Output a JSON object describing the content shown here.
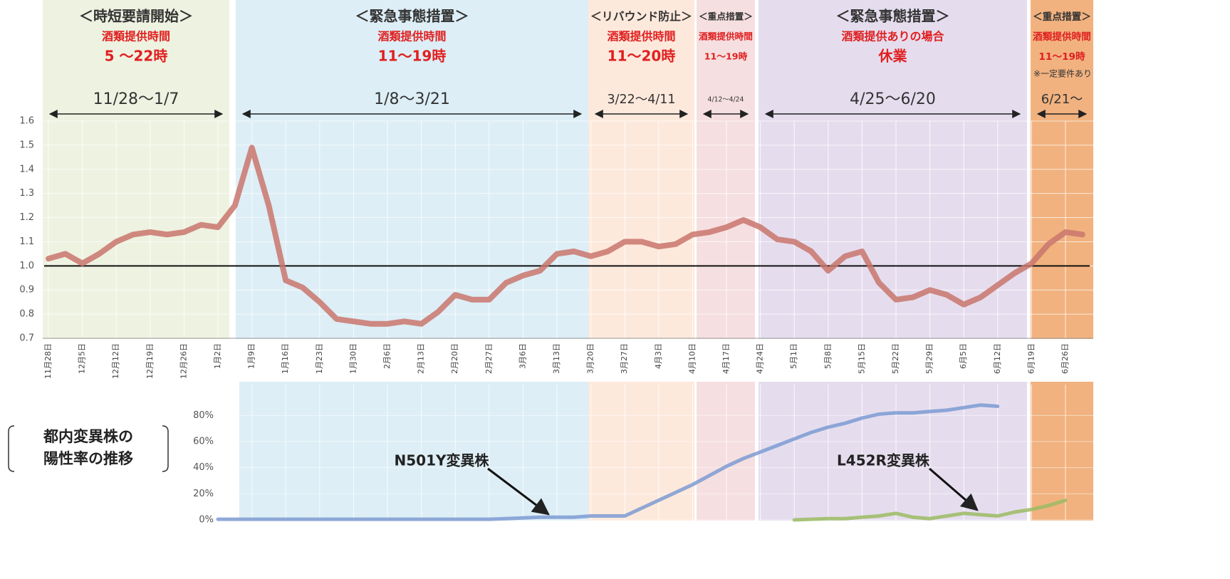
{
  "chart_data": [
    {
      "type": "line",
      "color": "#c9766c",
      "hline": 1,
      "ylim": [
        0.7,
        1.6
      ],
      "yticks": [
        0.7,
        0.8,
        0.9,
        {
          "value": 1,
          "label": "1.0"
        },
        1.1,
        1.2,
        1.3,
        1.4,
        1.5,
        1.6
      ],
      "categories": [
        "11月28日",
        null,
        "12月5日",
        null,
        "12月12日",
        null,
        "12月19日",
        null,
        "12月26日",
        null,
        "1月2日",
        null,
        "1月9日",
        null,
        "1月16日",
        null,
        "1月23日",
        null,
        "1月30日",
        null,
        "2月6日",
        null,
        "2月13日",
        null,
        "2月20日",
        null,
        "2月27日",
        null,
        "3月6日",
        null,
        "3月13日",
        null,
        "3月20日",
        null,
        "3月27日",
        null,
        "4月3日",
        null,
        "4月10日",
        null,
        "4月17日",
        null,
        "4月24日",
        null,
        "5月1日",
        null,
        "5月8日",
        null,
        "5月15日",
        null,
        "5月22日",
        null,
        "5月29日",
        null,
        "6月5日",
        null,
        "6月12日",
        null,
        "6月19日",
        null,
        "6月26日",
        null
      ],
      "values": [
        1.03,
        1.05,
        1.01,
        1.05,
        1.1,
        1.13,
        1.14,
        1.13,
        1.14,
        1.17,
        1.16,
        1.25,
        1.49,
        1.25,
        0.94,
        0.91,
        0.85,
        0.78,
        0.77,
        0.76,
        0.76,
        0.77,
        0.76,
        0.81,
        0.88,
        0.86,
        0.86,
        0.93,
        0.96,
        0.98,
        1.05,
        1.06,
        1.04,
        1.06,
        1.1,
        1.1,
        1.08,
        1.09,
        1.13,
        1.14,
        1.16,
        1.19,
        1.16,
        1.11,
        1.1,
        1.06,
        0.98,
        1.04,
        1.06,
        0.93,
        0.86,
        0.87,
        0.9,
        0.88,
        0.84,
        0.87,
        0.92,
        0.97,
        1.01,
        1.09,
        1.14,
        1.13
      ],
      "periods": [
        {
          "title": "＜時短要請開始＞",
          "sub": "酒類提供時間",
          "hours": "5 〜22時",
          "range": "11/28〜1/7",
          "color": "#eef2e1"
        },
        {
          "title": "＜緊急事態措置＞",
          "sub": "酒類提供時間",
          "hours": "11〜19時",
          "range": "1/8〜3/21",
          "color": "#ddeef6"
        },
        {
          "title": "＜リバウンド防止＞",
          "sub": "酒類提供時間",
          "hours": "11〜20時",
          "range": "3/22〜4/11",
          "color": "#fde9dc"
        },
        {
          "title": "＜重点措置＞",
          "sub": "酒類提供時間",
          "hours": "11〜19時",
          "range": "4/12〜4/24",
          "color": "#f6dfe0"
        },
        {
          "title": "＜緊急事態措置＞",
          "sub": "酒類提供ありの場合",
          "hours": "休業",
          "range": "4/25〜6/20",
          "color": "#e5ddee"
        },
        {
          "title": "＜重点措置＞",
          "sub": "酒類提供時間",
          "hours": "11〜19時",
          "range": "6/21〜",
          "note": "※一定要件あり",
          "color": "#f1b27f"
        }
      ]
    },
    {
      "type": "line",
      "title_lines": [
        "都内変異株の",
        "陽性率の推移"
      ],
      "ylim": [
        0,
        90
      ],
      "yticks": [
        {
          "value": 0,
          "label": "0%"
        },
        {
          "value": 20,
          "label": "20%"
        },
        {
          "value": 40,
          "label": "40%"
        },
        {
          "value": 60,
          "label": "60%"
        },
        {
          "value": 80,
          "label": "80%"
        }
      ],
      "series": [
        {
          "name": "N501Y変異株",
          "color": "#7c9bd2",
          "values": [
            null,
            null,
            null,
            null,
            null,
            null,
            null,
            null,
            null,
            null,
            0.5,
            0.5,
            0.5,
            0.5,
            0.5,
            0.5,
            0.5,
            0.5,
            0.5,
            0.5,
            0.5,
            0.5,
            0.5,
            0.5,
            0.5,
            0.5,
            0.5,
            1,
            1.5,
            2,
            2,
            2,
            3,
            3,
            3,
            9,
            15,
            21,
            27,
            34,
            41,
            47,
            52,
            57,
            62,
            67,
            71,
            74,
            78,
            81,
            82,
            82,
            83,
            84,
            86,
            88,
            87,
            null,
            null,
            null,
            null,
            null
          ]
        },
        {
          "name": "L452R変異株",
          "color": "#9cbb63",
          "values": [
            null,
            null,
            null,
            null,
            null,
            null,
            null,
            null,
            null,
            null,
            null,
            null,
            null,
            null,
            null,
            null,
            null,
            null,
            null,
            null,
            null,
            null,
            null,
            null,
            null,
            null,
            null,
            null,
            null,
            null,
            null,
            null,
            null,
            null,
            null,
            null,
            null,
            null,
            null,
            null,
            null,
            null,
            null,
            null,
            0,
            0.5,
            1,
            1,
            2,
            3,
            5,
            2,
            1,
            3,
            5,
            4,
            3,
            6,
            8,
            11,
            15,
            null
          ]
        }
      ]
    }
  ]
}
